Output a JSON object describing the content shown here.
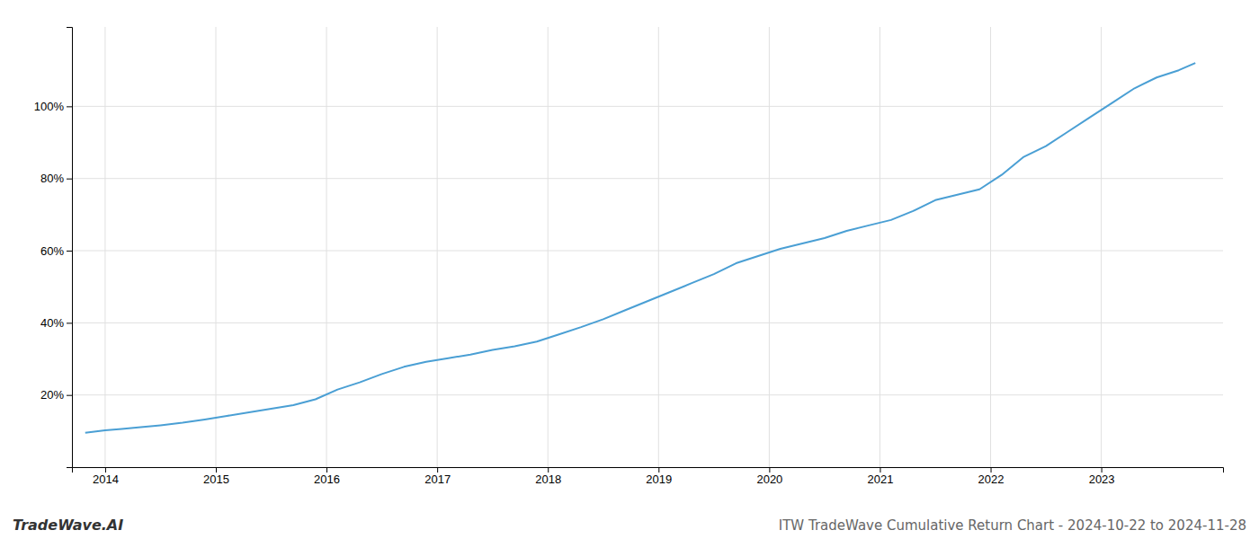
{
  "chart_data": {
    "type": "line",
    "title": "ITW TradeWave Cumulative Return Chart - 2024-10-22 to 2024-11-28",
    "annotations": [
      "TradeWave.AI"
    ],
    "x": [
      2013.82,
      2014.0,
      2014.15,
      2014.3,
      2014.5,
      2014.7,
      2014.9,
      2015.1,
      2015.3,
      2015.5,
      2015.7,
      2015.9,
      2016.1,
      2016.3,
      2016.5,
      2016.7,
      2016.9,
      2017.1,
      2017.3,
      2017.5,
      2017.7,
      2017.9,
      2018.1,
      2018.3,
      2018.5,
      2018.7,
      2018.9,
      2019.1,
      2019.3,
      2019.5,
      2019.7,
      2019.9,
      2020.1,
      2020.3,
      2020.5,
      2020.7,
      2020.9,
      2021.1,
      2021.3,
      2021.5,
      2021.7,
      2021.9,
      2022.1,
      2022.3,
      2022.5,
      2022.7,
      2022.9,
      2023.1,
      2023.3,
      2023.5,
      2023.7,
      2023.85
    ],
    "values": [
      9.5,
      10.2,
      10.6,
      11.0,
      11.6,
      12.3,
      13.2,
      14.2,
      15.2,
      16.2,
      17.2,
      18.8,
      21.5,
      23.5,
      25.8,
      27.8,
      29.2,
      30.2,
      31.2,
      32.5,
      33.5,
      34.8,
      36.8,
      38.8,
      41.0,
      43.5,
      46.0,
      48.5,
      51.0,
      53.5,
      56.5,
      58.5,
      60.5,
      62.0,
      63.5,
      65.5,
      67.0,
      68.5,
      71.0,
      74.0,
      75.5,
      77.0,
      81.0,
      86.0,
      89.0,
      93.0,
      97.0,
      101.0,
      105.0,
      108.0,
      110.0,
      112.0
    ],
    "color": "#4a9fd4",
    "xlim": [
      2013.7,
      2024.1
    ],
    "ylim": [
      0,
      122
    ],
    "xticks": [
      2014,
      2015,
      2016,
      2017,
      2018,
      2019,
      2020,
      2021,
      2022,
      2023
    ],
    "yticks": [
      {
        "value": 20,
        "label": "20%"
      },
      {
        "value": 40,
        "label": "40%"
      },
      {
        "value": 60,
        "label": "60%"
      },
      {
        "value": 80,
        "label": "80%"
      },
      {
        "value": 100,
        "label": "100%"
      }
    ],
    "grid": true
  }
}
